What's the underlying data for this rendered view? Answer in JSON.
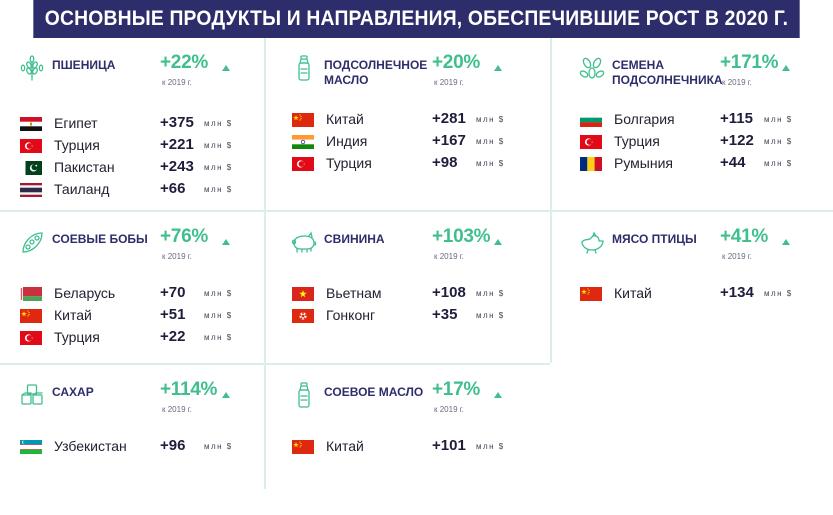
{
  "title": "ОСНОВНЫЕ ПРОДУКТЫ И НАПРАВЛЕНИЯ, ОБЕСПЕЧИВШИЕ РОСТ В 2020 Г.",
  "colors": {
    "banner": "#2e2d6b",
    "accent": "#3fbf8e",
    "divider": "#dbeee9"
  },
  "unit": "млн $",
  "baseline": "к 2019 г.",
  "products": [
    {
      "title": "ПШЕНИЦА",
      "growth": "+22%",
      "icon": "wheat-icon",
      "rows": [
        {
          "flag": "egypt",
          "country": "Египет",
          "amount": "+375"
        },
        {
          "flag": "turkey",
          "country": "Турция",
          "amount": "+221"
        },
        {
          "flag": "pakistan",
          "country": "Пакистан",
          "amount": "+243"
        },
        {
          "flag": "thailand",
          "country": "Таиланд",
          "amount": "+66"
        }
      ]
    },
    {
      "title": "ПОДСОЛНЕЧНОЕ МАСЛО",
      "growth": "+20%",
      "icon": "oil-bottle-icon",
      "rows": [
        {
          "flag": "china",
          "country": "Китай",
          "amount": "+281"
        },
        {
          "flag": "india",
          "country": "Индия",
          "amount": "+167"
        },
        {
          "flag": "turkey",
          "country": "Турция",
          "amount": "+98"
        }
      ]
    },
    {
      "title": "СЕМЕНА ПОДСОЛНЕЧНИКА",
      "growth": "+171%",
      "icon": "sunflower-seeds-icon",
      "rows": [
        {
          "flag": "bulgaria",
          "country": "Болгария",
          "amount": "+115"
        },
        {
          "flag": "turkey",
          "country": "Турция",
          "amount": "+122"
        },
        {
          "flag": "romania",
          "country": "Румыния",
          "amount": "+44"
        }
      ]
    },
    {
      "title": "СОЕВЫЕ БОБЫ",
      "growth": "+76%",
      "icon": "soybean-icon",
      "rows": [
        {
          "flag": "belarus",
          "country": "Беларусь",
          "amount": "+70"
        },
        {
          "flag": "china",
          "country": "Китай",
          "amount": "+51"
        },
        {
          "flag": "turkey",
          "country": "Турция",
          "amount": "+22"
        }
      ]
    },
    {
      "title": "СВИНИНА",
      "growth": "+103%",
      "icon": "pig-icon",
      "rows": [
        {
          "flag": "vietnam",
          "country": "Вьетнам",
          "amount": "+108"
        },
        {
          "flag": "hongkong",
          "country": "Гонконг",
          "amount": "+35"
        }
      ]
    },
    {
      "title": "МЯСО ПТИЦЫ",
      "growth": "+41%",
      "icon": "chicken-icon",
      "rows": [
        {
          "flag": "china",
          "country": "Китай",
          "amount": "+134"
        }
      ]
    },
    {
      "title": "САХАР",
      "growth": "+114%",
      "icon": "sugar-cubes-icon",
      "rows": [
        {
          "flag": "uzbekistan",
          "country": "Узбекистан",
          "amount": "+96"
        }
      ]
    },
    {
      "title": "СОЕВОЕ МАСЛО",
      "growth": "+17%",
      "icon": "oil-bottle-icon",
      "rows": [
        {
          "flag": "china",
          "country": "Китай",
          "amount": "+101"
        }
      ]
    }
  ]
}
